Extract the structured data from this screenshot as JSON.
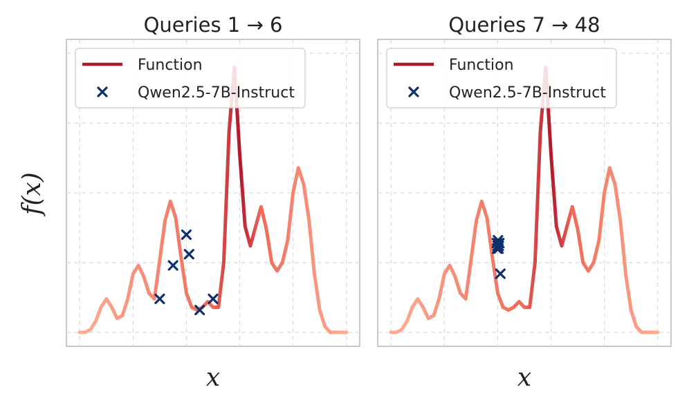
{
  "colors": {
    "function": "#b2182b",
    "function_light": "#fcae91",
    "marker": "#0d2f6b",
    "grid": "#d9d9d9",
    "frame": "#c8c8c8"
  },
  "ylabel": "f(x)",
  "chart_data": [
    {
      "type": "line",
      "title": "Queries 1 → 6",
      "xlabel": "x",
      "ylabel": "f(x)",
      "grid": true,
      "legend": {
        "placement": "top-left",
        "entries": [
          "Function",
          "Qwen2.5-7B-Instruct"
        ]
      },
      "xlim": [
        -0.05,
        1.05
      ],
      "ylim": [
        -0.05,
        1.05
      ],
      "function": {
        "name": "Function",
        "x": [
          0,
          0.02,
          0.04,
          0.06,
          0.08,
          0.1,
          0.12,
          0.14,
          0.16,
          0.18,
          0.2,
          0.22,
          0.24,
          0.26,
          0.28,
          0.3,
          0.32,
          0.34,
          0.36,
          0.38,
          0.4,
          0.42,
          0.44,
          0.46,
          0.48,
          0.5,
          0.52,
          0.54,
          0.56,
          0.58,
          0.6,
          0.62,
          0.64,
          0.66,
          0.68,
          0.7,
          0.72,
          0.74,
          0.76,
          0.78,
          0.8,
          0.82,
          0.84,
          0.86,
          0.88,
          0.9,
          0.92,
          0.94,
          0.96,
          0.98,
          1.0
        ],
        "y": [
          0.0,
          0.0,
          0.01,
          0.04,
          0.09,
          0.12,
          0.09,
          0.05,
          0.06,
          0.12,
          0.21,
          0.24,
          0.2,
          0.14,
          0.12,
          0.26,
          0.4,
          0.47,
          0.41,
          0.27,
          0.14,
          0.09,
          0.08,
          0.09,
          0.11,
          0.09,
          0.09,
          0.25,
          0.72,
          0.95,
          0.64,
          0.38,
          0.31,
          0.38,
          0.45,
          0.37,
          0.25,
          0.22,
          0.25,
          0.33,
          0.5,
          0.59,
          0.53,
          0.4,
          0.21,
          0.08,
          0.02,
          0.0,
          0.0,
          0.0,
          0.0
        ]
      },
      "series": [
        {
          "name": "Qwen2.5-7B-Instruct",
          "x": [
            0.3,
            0.35,
            0.4,
            0.41,
            0.45,
            0.5
          ],
          "y": [
            0.12,
            0.24,
            0.35,
            0.28,
            0.08,
            0.12
          ]
        }
      ]
    },
    {
      "type": "line",
      "title": "Queries 7 → 48",
      "xlabel": "x",
      "ylabel": "f(x)",
      "grid": true,
      "legend": {
        "placement": "top-left",
        "entries": [
          "Function",
          "Qwen2.5-7B-Instruct"
        ]
      },
      "xlim": [
        -0.05,
        1.05
      ],
      "ylim": [
        -0.05,
        1.05
      ],
      "function": {
        "name": "Function",
        "x": [
          0,
          0.02,
          0.04,
          0.06,
          0.08,
          0.1,
          0.12,
          0.14,
          0.16,
          0.18,
          0.2,
          0.22,
          0.24,
          0.26,
          0.28,
          0.3,
          0.32,
          0.34,
          0.36,
          0.38,
          0.4,
          0.42,
          0.44,
          0.46,
          0.48,
          0.5,
          0.52,
          0.54,
          0.56,
          0.58,
          0.6,
          0.62,
          0.64,
          0.66,
          0.68,
          0.7,
          0.72,
          0.74,
          0.76,
          0.78,
          0.8,
          0.82,
          0.84,
          0.86,
          0.88,
          0.9,
          0.92,
          0.94,
          0.96,
          0.98,
          1.0
        ],
        "y": [
          0.0,
          0.0,
          0.01,
          0.04,
          0.09,
          0.12,
          0.09,
          0.05,
          0.06,
          0.12,
          0.21,
          0.24,
          0.2,
          0.14,
          0.12,
          0.26,
          0.4,
          0.47,
          0.41,
          0.27,
          0.14,
          0.09,
          0.08,
          0.09,
          0.11,
          0.09,
          0.09,
          0.25,
          0.72,
          0.95,
          0.64,
          0.38,
          0.31,
          0.38,
          0.45,
          0.37,
          0.25,
          0.22,
          0.25,
          0.33,
          0.5,
          0.59,
          0.53,
          0.4,
          0.21,
          0.08,
          0.02,
          0.0,
          0.0,
          0.0,
          0.0
        ]
      },
      "series": [
        {
          "name": "Qwen2.5-7B-Instruct",
          "x": [
            0.397,
            0.4,
            0.403,
            0.406,
            0.398,
            0.404,
            0.401,
            0.41
          ],
          "y": [
            0.32,
            0.31,
            0.3,
            0.32,
            0.3,
            0.31,
            0.33,
            0.21
          ]
        }
      ]
    }
  ]
}
